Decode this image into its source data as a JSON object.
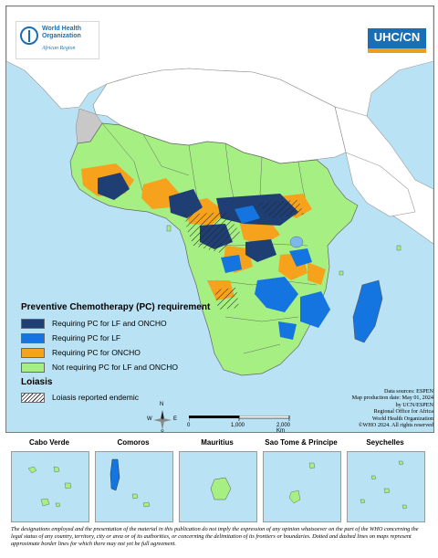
{
  "header": {
    "org_name": "World Health Organization",
    "org_region": "African Region",
    "partner_logo": "UHC/CN"
  },
  "legend": {
    "title": "Preventive Chemotherapy (PC) requirement",
    "items": [
      {
        "label": "Requiring PC for LF and ONCHO",
        "color": "#1f3f74"
      },
      {
        "label": "Requiring PC for LF",
        "color": "#1575e0"
      },
      {
        "label": "Requiring PC for ONCHO",
        "color": "#f6a21c"
      },
      {
        "label": "Not requiring PC for LF and ONCHO",
        "color": "#a6ef82"
      }
    ],
    "loiasis_title": "Loiasis",
    "loiasis_label": "Loiasis reported endemic"
  },
  "scale_bar": {
    "ticks": [
      "0",
      "1,000",
      "2,000 Km"
    ]
  },
  "compass": {
    "n": "N",
    "s": "S",
    "e": "E",
    "w": "W"
  },
  "credits": [
    "Data sources: ESPEN",
    "Map production date: May 01, 2024",
    "by UCN/ESPEN",
    "Regional Office for Africa",
    "World Health Organization",
    "©WHO 2024. All rights reserved"
  ],
  "insets": [
    {
      "name": "Cabo Verde"
    },
    {
      "name": "Comoros"
    },
    {
      "name": "Mauritius"
    },
    {
      "name": "Sao Tome & Principe"
    },
    {
      "name": "Seychelles"
    }
  ],
  "disclaimer": "The designations employed and the presentation of the material in this publication do not imply the expression of any opinion whatsoever on the part of the WHO concerning the legal status of any country, territory, city or area or of its authorities, or concerning the delimitation of its frontiers or boundaries. Dotted and dashed lines on maps represent approximate border lines for which there may not yet be full agreement.",
  "colors": {
    "sea": "#b9e3f5",
    "not_region_land": "#ffffff",
    "other_land": "#c8c8c8",
    "lf_oncho": "#1f3f74",
    "lf": "#1575e0",
    "oncho": "#f6a21c",
    "none": "#a6ef82"
  }
}
